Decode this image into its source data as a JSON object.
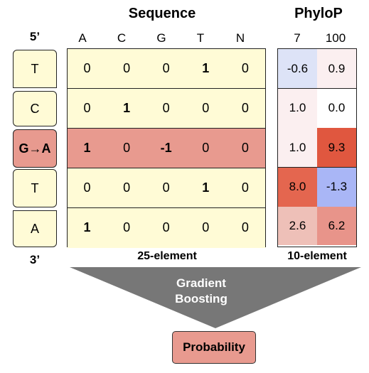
{
  "titles": {
    "sequence": "Sequence",
    "phylop": "PhyloP"
  },
  "ends": {
    "five_prime": "5’",
    "three_prime": "3’"
  },
  "nucleotide_headers": [
    "A",
    "C",
    "G",
    "T",
    "N"
  ],
  "phylop_headers": [
    "7",
    "100"
  ],
  "bases": [
    "T",
    "C",
    "G→A",
    "T",
    "A"
  ],
  "mutated_row": 2,
  "sequence_matrix": [
    [
      "0",
      "0",
      "0",
      "1",
      "0"
    ],
    [
      "0",
      "1",
      "0",
      "0",
      "0"
    ],
    [
      "1",
      "0",
      "-1",
      "0",
      "0"
    ],
    [
      "0",
      "0",
      "0",
      "1",
      "0"
    ],
    [
      "1",
      "0",
      "0",
      "0",
      "0"
    ]
  ],
  "phylop_matrix": [
    [
      "-0.6",
      "0.9"
    ],
    [
      "1.0",
      "0.0"
    ],
    [
      "1.0",
      "9.3"
    ],
    [
      "8.0",
      "-1.3"
    ],
    [
      "2.6",
      "6.2"
    ]
  ],
  "phylop_colors": [
    [
      "#dde3f7",
      "#fbeff0"
    ],
    [
      "#fbeff0",
      "#ffffff"
    ],
    [
      "#fbeff0",
      "#e0573f"
    ],
    [
      "#e4664f",
      "#a9b6f6"
    ],
    [
      "#eec0b8",
      "#e8948a"
    ]
  ],
  "footer": {
    "sequence_size": "25-element",
    "phylop_size": "10-element"
  },
  "model": {
    "line1": "Gradient",
    "line2": "Boosting"
  },
  "output": "Probability",
  "colors": {
    "cell": "#fffbd6",
    "mutation": "#e89a8f",
    "arrow": "#777777"
  }
}
